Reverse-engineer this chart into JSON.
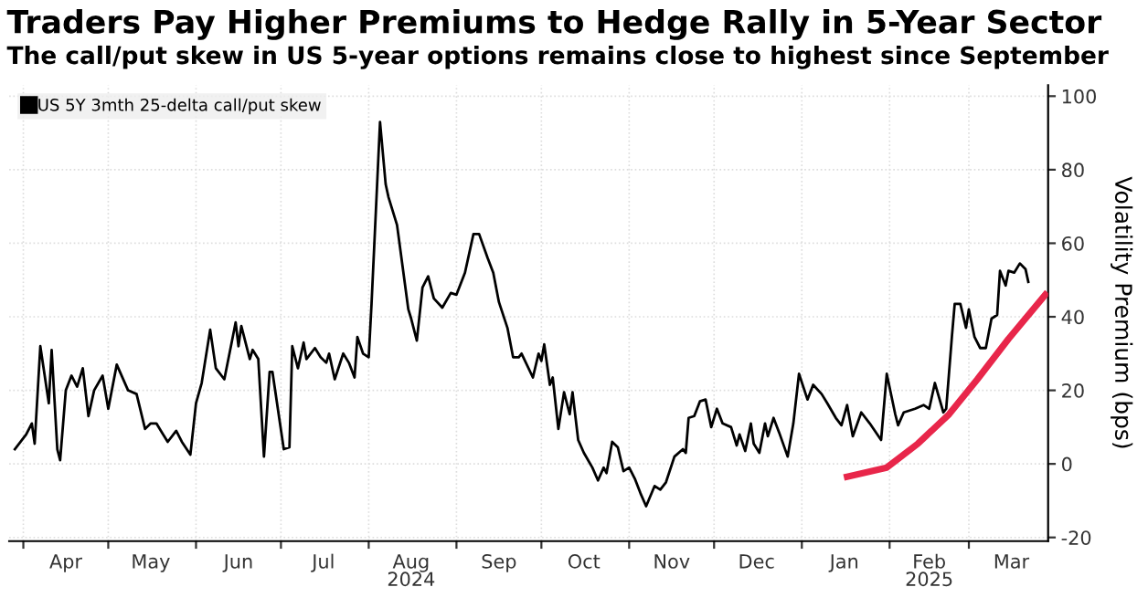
{
  "chart_data": {
    "type": "line",
    "title": "Traders Pay Higher Premiums to Hedge Rally in 5-Year Sector",
    "subtitle": "The call/put skew in US 5-year options remains close to highest since September",
    "ylabel": "Volatility Premium (bps)",
    "xlim": [
      "2024-03-27",
      "2025-03-29"
    ],
    "ylim": [
      -21,
      103
    ],
    "yticks": [
      -20,
      0,
      20,
      40,
      60,
      80,
      100
    ],
    "xticks": [
      {
        "value": "2024-04-01",
        "label": null
      },
      {
        "value": "2024-04-16",
        "label": "Apr"
      },
      {
        "value": "2024-05-01",
        "label": null
      },
      {
        "value": "2024-05-16",
        "label": "May"
      },
      {
        "value": "2024-06-01",
        "label": null
      },
      {
        "value": "2024-06-16",
        "label": "Jun"
      },
      {
        "value": "2024-07-01",
        "label": null
      },
      {
        "value": "2024-07-16",
        "label": "Jul"
      },
      {
        "value": "2024-08-01",
        "label": null
      },
      {
        "value": "2024-08-16",
        "label": "Aug\n2024"
      },
      {
        "value": "2024-09-01",
        "label": null
      },
      {
        "value": "2024-09-16",
        "label": "Sep"
      },
      {
        "value": "2024-10-01",
        "label": null
      },
      {
        "value": "2024-10-16",
        "label": "Oct"
      },
      {
        "value": "2024-11-01",
        "label": null
      },
      {
        "value": "2024-11-16",
        "label": "Nov"
      },
      {
        "value": "2024-12-01",
        "label": null
      },
      {
        "value": "2024-12-16",
        "label": "Dec"
      },
      {
        "value": "2025-01-01",
        "label": null
      },
      {
        "value": "2025-01-16",
        "label": "Jan"
      },
      {
        "value": "2025-02-01",
        "label": null
      },
      {
        "value": "2025-02-15",
        "label": "Feb\n2025"
      },
      {
        "value": "2025-03-01",
        "label": null
      },
      {
        "value": "2025-03-16",
        "label": "Mar"
      }
    ],
    "grid": true,
    "legend": "top left",
    "series": [
      {
        "name": "US 5Y 3mth 25-delta call/put skew",
        "color": "#000000",
        "x": [
          "2024-03-29",
          "2024-04-02",
          "2024-04-04",
          "2024-04-05",
          "2024-04-07",
          "2024-04-10",
          "2024-04-11",
          "2024-04-13",
          "2024-04-14",
          "2024-04-16",
          "2024-04-18",
          "2024-04-20",
          "2024-04-22",
          "2024-04-24",
          "2024-04-26",
          "2024-04-29",
          "2024-05-01",
          "2024-05-04",
          "2024-05-08",
          "2024-05-11",
          "2024-05-14",
          "2024-05-16",
          "2024-05-18",
          "2024-05-20",
          "2024-05-22",
          "2024-05-25",
          "2024-05-27",
          "2024-05-30",
          "2024-06-01",
          "2024-06-03",
          "2024-06-06",
          "2024-06-08",
          "2024-06-11",
          "2024-06-15",
          "2024-06-16",
          "2024-06-17",
          "2024-06-20",
          "2024-06-21",
          "2024-06-23",
          "2024-06-25",
          "2024-06-27",
          "2024-06-28",
          "2024-07-02",
          "2024-07-04",
          "2024-07-05",
          "2024-07-07",
          "2024-07-09",
          "2024-07-10",
          "2024-07-13",
          "2024-07-15",
          "2024-07-17",
          "2024-07-18",
          "2024-07-20",
          "2024-07-23",
          "2024-07-25",
          "2024-07-27",
          "2024-07-28",
          "2024-07-30",
          "2024-08-01",
          "2024-08-02",
          "2024-08-05",
          "2024-08-07",
          "2024-08-08",
          "2024-08-11",
          "2024-08-15",
          "2024-08-16",
          "2024-08-18",
          "2024-08-20",
          "2024-08-22",
          "2024-08-24",
          "2024-08-27",
          "2024-08-30",
          "2024-09-01",
          "2024-09-04",
          "2024-09-07",
          "2024-09-09",
          "2024-09-12",
          "2024-09-14",
          "2024-09-16",
          "2024-09-19",
          "2024-09-21",
          "2024-09-23",
          "2024-09-24",
          "2024-09-28",
          "2024-09-30",
          "2024-10-01",
          "2024-10-02",
          "2024-10-04",
          "2024-10-05",
          "2024-10-07",
          "2024-10-09",
          "2024-10-11",
          "2024-10-12",
          "2024-10-14",
          "2024-10-16",
          "2024-10-19",
          "2024-10-21",
          "2024-10-23",
          "2024-10-24",
          "2024-10-26",
          "2024-10-28",
          "2024-10-30",
          "2024-11-01",
          "2024-11-03",
          "2024-11-05",
          "2024-11-07",
          "2024-11-10",
          "2024-11-12",
          "2024-11-14",
          "2024-11-17",
          "2024-11-20",
          "2024-11-21",
          "2024-11-22",
          "2024-11-24",
          "2024-11-26",
          "2024-11-28",
          "2024-11-30",
          "2024-12-02",
          "2024-12-04",
          "2024-12-07",
          "2024-12-09",
          "2024-12-10",
          "2024-12-12",
          "2024-12-14",
          "2024-12-15",
          "2024-12-17",
          "2024-12-19",
          "2024-12-20",
          "2024-12-22",
          "2024-12-24",
          "2024-12-27",
          "2024-12-29",
          "2024-12-31",
          "2025-01-03",
          "2025-01-05",
          "2025-01-08",
          "2025-01-10",
          "2025-01-13",
          "2025-01-15",
          "2025-01-17",
          "2025-01-19",
          "2025-01-22",
          "2025-01-25",
          "2025-01-29",
          "2025-01-31",
          "2025-02-03",
          "2025-02-04",
          "2025-02-06",
          "2025-02-10",
          "2025-02-13",
          "2025-02-15",
          "2025-02-17",
          "2025-02-20",
          "2025-02-21",
          "2025-02-23",
          "2025-02-24",
          "2025-02-26",
          "2025-02-28",
          "2025-03-01",
          "2025-03-03",
          "2025-03-05",
          "2025-03-07",
          "2025-03-09",
          "2025-03-11",
          "2025-03-12",
          "2025-03-14",
          "2025-03-15",
          "2025-03-17",
          "2025-03-19",
          "2025-03-21",
          "2025-03-22"
        ],
        "values": [
          4,
          8,
          11,
          5.5,
          32,
          16.5,
          31,
          4,
          1,
          20,
          24,
          21,
          26,
          13,
          20,
          24,
          15,
          27,
          20,
          19,
          9.5,
          11,
          11,
          8.5,
          6,
          9,
          6,
          2.5,
          16.5,
          22,
          36.5,
          26,
          23,
          38.5,
          32,
          37.5,
          28.5,
          31,
          28.5,
          2,
          25,
          25,
          4,
          4.5,
          32,
          26,
          33,
          28.5,
          31.5,
          29,
          27.5,
          30,
          23,
          30,
          27.5,
          23.5,
          34.5,
          30,
          29,
          43.5,
          93,
          76,
          72.5,
          65,
          42,
          39.5,
          33.5,
          48,
          51,
          45,
          42.5,
          46.5,
          46,
          52,
          62.5,
          62.5,
          56,
          52,
          44,
          37,
          29,
          29,
          30,
          23.5,
          30,
          28,
          32.5,
          21.5,
          23.5,
          9.5,
          19.5,
          13.5,
          19.5,
          6.5,
          3,
          -1,
          -4.5,
          -1,
          -2.5,
          6,
          4.5,
          -2,
          -1,
          -4,
          -8,
          -11.5,
          -6,
          -7,
          -5,
          2,
          4,
          3,
          12.5,
          13,
          17,
          17.5,
          10,
          15,
          11,
          10,
          5,
          8,
          3.5,
          11,
          5.5,
          3,
          11,
          7.5,
          12.5,
          8.5,
          2,
          11,
          24.5,
          17.5,
          21.5,
          19,
          16.5,
          12.5,
          10.5,
          16,
          7.5,
          14,
          11,
          6.5,
          24.5,
          13.5,
          10.5,
          14,
          15,
          16,
          15,
          22,
          14,
          15,
          34.5,
          43.5,
          43.5,
          37,
          42,
          34.5,
          31.5,
          31.5,
          39.5,
          40.5,
          52.5,
          48.5,
          52.5,
          52,
          54.5,
          53,
          49.5
        ]
      },
      {
        "type": "line",
        "color": "#e8264a",
        "x": [
          "2025-01-17",
          "2025-01-31",
          "2025-02-11",
          "2025-02-22",
          "2025-03-04",
          "2025-03-15",
          "2025-03-28"
        ],
        "values": [
          -3.5,
          -1,
          5.5,
          13.5,
          23,
          34,
          46
        ]
      }
    ]
  }
}
